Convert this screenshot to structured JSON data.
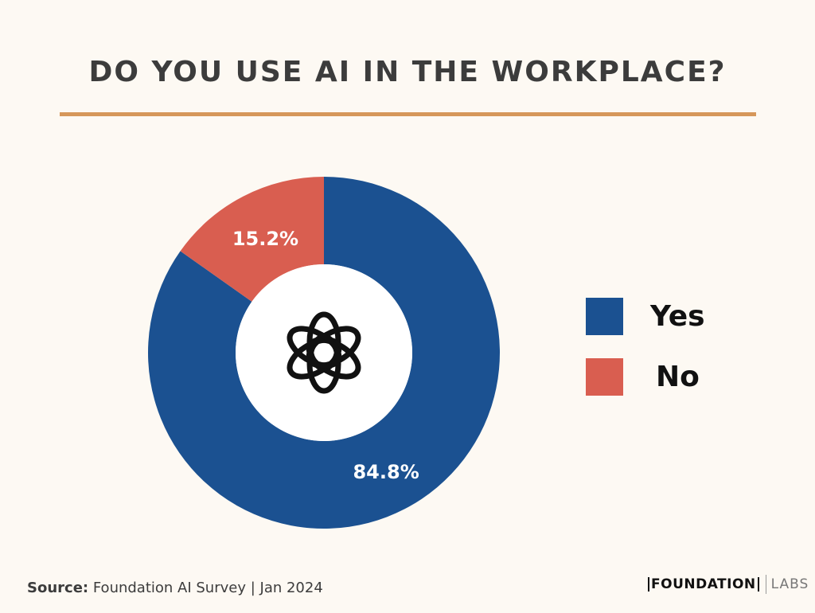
{
  "chart_data": {
    "type": "pie",
    "title": "DO YOU USE AI IN THE WORKPLACE?",
    "categories": [
      "Yes",
      "No"
    ],
    "values": [
      84.8,
      15.2
    ],
    "value_labels": [
      "84.8%",
      "15.2%"
    ],
    "colors": [
      "#1b5191",
      "#d95e50"
    ],
    "donut": true,
    "center_icon": "openai-logo-icon",
    "legend": "right"
  },
  "source": {
    "label": "Source:",
    "text": "Foundation AI Survey | Jan 2024"
  },
  "brand": {
    "name": "FOUNDATION",
    "suffix": "LABS"
  }
}
